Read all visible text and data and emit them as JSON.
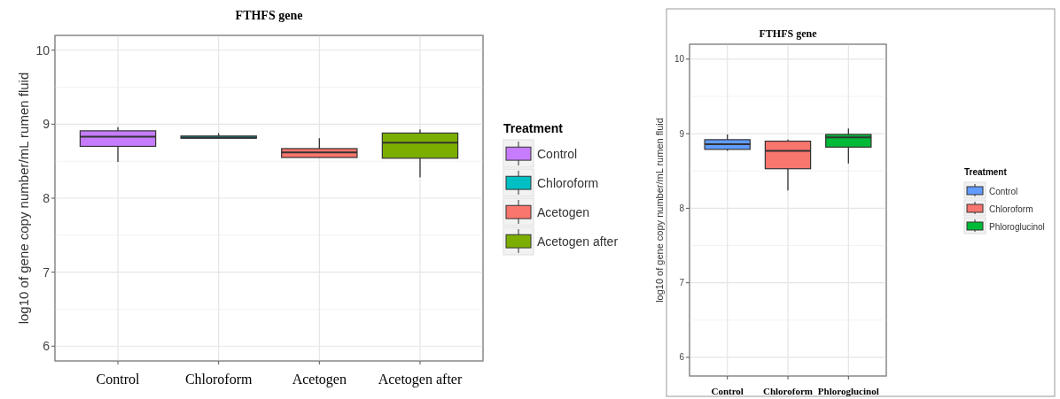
{
  "chart_data": [
    {
      "type": "box",
      "title": "FTHFS gene",
      "ylabel": "log10 of gene copy number/mL rumen fluid",
      "legend_title": "Treatment",
      "legend": "right",
      "grid": true,
      "categories": [
        "Control",
        "Chloroform",
        "Acetogen",
        "Acetogen after"
      ],
      "series": [
        {
          "name": "Control",
          "color": "#c77cff",
          "boxes": [
            {
              "low": 8.49,
              "q1": 8.7,
              "median": 8.83,
              "q3": 8.91,
              "high": 8.96
            },
            null,
            null,
            null
          ]
        },
        {
          "name": "Chloroform",
          "color": "#00bfc4",
          "boxes": [
            null,
            {
              "low": 8.81,
              "q1": 8.81,
              "median": 8.82,
              "q3": 8.84,
              "high": 8.88
            },
            null,
            null
          ]
        },
        {
          "name": "Acetogen",
          "color": "#f8766d",
          "boxes": [
            null,
            null,
            {
              "low": 8.55,
              "q1": 8.55,
              "median": 8.62,
              "q3": 8.67,
              "high": 8.81
            },
            null
          ]
        },
        {
          "name": "Acetogen after",
          "color": "#7cae00",
          "boxes": [
            null,
            null,
            null,
            {
              "low": 8.28,
              "q1": 8.54,
              "median": 8.75,
              "q3": 8.88,
              "high": 8.93
            }
          ]
        }
      ],
      "ylim": [
        5.8,
        10.2
      ],
      "yticks": [
        6,
        7,
        8,
        9,
        10
      ]
    },
    {
      "type": "box",
      "title": "FTHFS gene",
      "ylabel": "log10 of gene copy number/mL rumen fluid",
      "legend_title": "Treatment",
      "legend": "right",
      "grid": true,
      "categories": [
        "Control",
        "Chloroform",
        "Phloroglucinol"
      ],
      "series": [
        {
          "name": "Control",
          "color": "#619cff",
          "boxes": [
            {
              "low": 8.77,
              "q1": 8.79,
              "median": 8.86,
              "q3": 8.92,
              "high": 8.99
            },
            null,
            null
          ]
        },
        {
          "name": "Chloroform",
          "color": "#f8766d",
          "boxes": [
            null,
            {
              "low": 8.24,
              "q1": 8.53,
              "median": 8.77,
              "q3": 8.9,
              "high": 8.92
            },
            null
          ]
        },
        {
          "name": "Phloroglucinol",
          "color": "#00ba38",
          "boxes": [
            null,
            null,
            {
              "low": 8.6,
              "q1": 8.82,
              "median": 8.95,
              "q3": 8.99,
              "high": 9.07
            }
          ]
        }
      ],
      "ylim": [
        5.75,
        10.2
      ],
      "yticks": [
        6,
        7,
        8,
        9,
        10
      ]
    }
  ]
}
